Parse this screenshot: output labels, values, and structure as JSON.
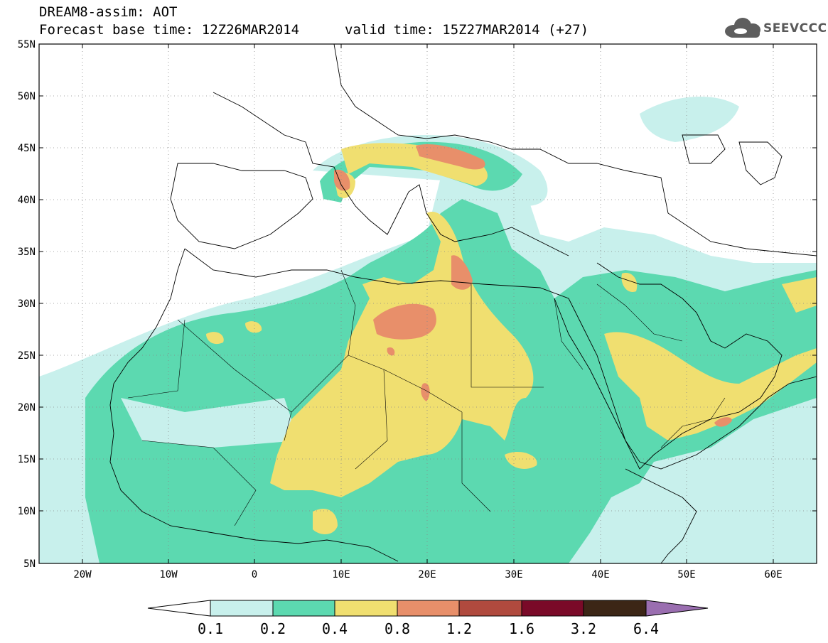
{
  "header": {
    "title": "DREAM8-assim: AOT",
    "base_time": "Forecast base time: 12Z26MAR2014",
    "valid_time": "valid time: 15Z27MAR2014 (+27)"
  },
  "logo": {
    "text": "SEEVCCC",
    "icon": "cloud-logo-icon"
  },
  "map": {
    "lat_labels": [
      "55N",
      "50N",
      "45N",
      "40N",
      "35N",
      "30N",
      "25N",
      "20N",
      "15N",
      "10N",
      "5N"
    ],
    "lon_labels": [
      "20W",
      "10W",
      "0",
      "10E",
      "20E",
      "30E",
      "40E",
      "50E",
      "60E"
    ],
    "grid": "dotted"
  },
  "colorbar": {
    "labels": [
      "0.1",
      "0.2",
      "0.4",
      "0.8",
      "1.2",
      "1.6",
      "3.2",
      "6.4"
    ],
    "colors": [
      "#ffffff",
      "#c8f0ec",
      "#5cd9b0",
      "#f0df70",
      "#e88f6a",
      "#b04a3e",
      "#7a0a28",
      "#3c2616",
      "#9a6eb0"
    ]
  }
}
